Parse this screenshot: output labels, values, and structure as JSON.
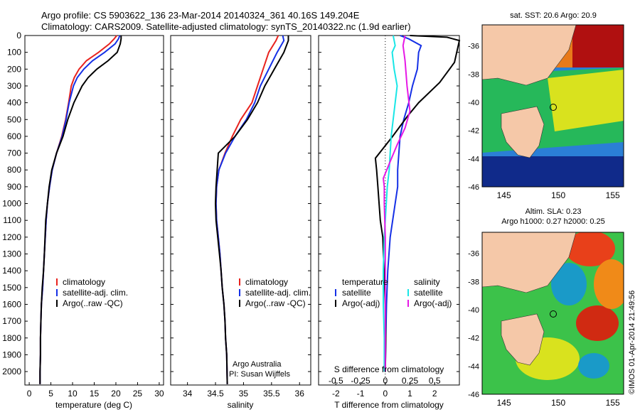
{
  "header": {
    "line1": "Argo profile: CS 5903622_136 23-Mar-2014 20140324_361 40.16S 149.204E",
    "line2": "Climatology: CARS2009. Satellite-adjusted climatology: synTS_20140322.nc (1.9d earlier)"
  },
  "colors": {
    "climatology": "#e8231e",
    "satellite": "#1530e6",
    "argo": "#000000",
    "satellite_s": "#19e6e6",
    "argo_s": "#e619e6"
  },
  "chart_data": [
    {
      "id": "temperature",
      "type": "line",
      "xlabel": "temperature (deg C)",
      "ylabel": "",
      "xlim": [
        -1,
        31
      ],
      "ylim": [
        2080,
        0
      ],
      "xticks": [
        0,
        5,
        10,
        15,
        20,
        25,
        30
      ],
      "yticks": [
        0,
        100,
        200,
        300,
        400,
        500,
        600,
        700,
        800,
        900,
        1000,
        1100,
        1200,
        1300,
        1400,
        1500,
        1600,
        1700,
        1800,
        1900,
        2000
      ],
      "legend": {
        "placement": "lower-middle",
        "entries": [
          "climatology",
          "satellite-adj. clim.",
          "Argo(..raw -QC)"
        ]
      },
      "series": [
        {
          "name": "climatology",
          "color": "#e8231e",
          "x": [
            20.2,
            19.6,
            18.5,
            16.0,
            13.2,
            11.5,
            10.4,
            9.7,
            9.1,
            8.4,
            7.5,
            6.3,
            5.3,
            4.7,
            4.2,
            3.9,
            3.5,
            3.3,
            3.1,
            2.8,
            2.7,
            2.6,
            2.6,
            2.5,
            2.5,
            2.5
          ],
          "y": [
            0,
            20,
            50,
            100,
            150,
            200,
            250,
            300,
            400,
            500,
            600,
            700,
            800,
            900,
            1000,
            1100,
            1300,
            1400,
            1500,
            1600,
            1700,
            1800,
            1900,
            2000,
            2050,
            2075
          ]
        },
        {
          "name": "satellite-adj. clim.",
          "color": "#1530e6",
          "x": [
            20.9,
            20.6,
            19.8,
            17.4,
            14.6,
            12.6,
            11.1,
            10.2,
            9.2,
            8.5,
            7.6,
            6.3,
            5.3,
            4.7,
            4.2,
            3.9,
            3.5,
            3.3,
            3.1,
            2.8,
            2.7,
            2.6,
            2.6,
            2.5,
            2.5,
            2.5
          ],
          "y": [
            0,
            20,
            50,
            100,
            150,
            200,
            250,
            300,
            400,
            500,
            600,
            700,
            800,
            900,
            1000,
            1100,
            1300,
            1400,
            1500,
            1600,
            1700,
            1800,
            1900,
            2000,
            2050,
            2075
          ]
        },
        {
          "name": "Argo(..raw -QC)",
          "color": "#000000",
          "x": [
            21.2,
            21.2,
            21.0,
            20.3,
            18.2,
            15.6,
            13.6,
            12.2,
            10.3,
            8.9,
            7.8,
            6.3,
            5.2,
            4.6,
            4.2,
            3.8,
            3.5,
            3.3,
            3.0,
            2.8,
            2.7,
            2.6,
            2.6,
            2.5,
            2.5,
            2.5
          ],
          "y": [
            0,
            20,
            50,
            100,
            150,
            200,
            250,
            300,
            400,
            500,
            600,
            700,
            800,
            900,
            1000,
            1100,
            1300,
            1400,
            1500,
            1600,
            1700,
            1800,
            1900,
            2000,
            2050,
            2075
          ]
        }
      ]
    },
    {
      "id": "salinity",
      "type": "line",
      "xlabel": "salinity",
      "ylabel": "",
      "xlim": [
        33.7,
        36.2
      ],
      "ylim": [
        2080,
        0
      ],
      "xticks": [
        34,
        34.5,
        35,
        35.5,
        36
      ],
      "legend": {
        "placement": "lower-right",
        "entries": [
          "climatology",
          "satellite-adj. clim.",
          "Argo(..raw -QC)"
        ]
      },
      "annotation": [
        "Argo Australia",
        "PI: Susan Wijffels"
      ],
      "series": [
        {
          "name": "climatology",
          "color": "#e8231e",
          "x": [
            35.62,
            35.58,
            35.45,
            35.35,
            35.25,
            35.15,
            34.95,
            34.8,
            34.67,
            34.56,
            34.52,
            34.51,
            34.52,
            34.55,
            34.58,
            34.6,
            34.62,
            34.65,
            34.67,
            34.68,
            34.7,
            34.71
          ],
          "y": [
            0,
            30,
            100,
            200,
            300,
            400,
            500,
            600,
            700,
            800,
            900,
            1000,
            1100,
            1200,
            1300,
            1400,
            1500,
            1600,
            1700,
            1800,
            1900,
            2075
          ]
        },
        {
          "name": "satellite-adj. clim.",
          "color": "#1530e6",
          "x": [
            35.7,
            35.72,
            35.6,
            35.45,
            35.3,
            35.2,
            35.05,
            34.85,
            34.68,
            34.56,
            34.52,
            34.51,
            34.52,
            34.55,
            34.58,
            34.6,
            34.62,
            34.65,
            34.67,
            34.68,
            34.7,
            34.71
          ],
          "y": [
            0,
            30,
            100,
            200,
            300,
            400,
            500,
            600,
            700,
            800,
            900,
            1000,
            1100,
            1200,
            1300,
            1400,
            1500,
            1600,
            1700,
            1800,
            1900,
            2075
          ]
        },
        {
          "name": "Argo(..raw -QC)",
          "color": "#000000",
          "x": [
            35.8,
            35.8,
            35.72,
            35.55,
            35.38,
            35.25,
            35.07,
            34.85,
            34.55,
            34.53,
            34.51,
            34.5,
            34.51,
            34.54,
            34.57,
            34.6,
            34.62,
            34.65,
            34.67,
            34.68,
            34.7,
            34.71
          ],
          "y": [
            0,
            30,
            100,
            200,
            300,
            400,
            500,
            600,
            700,
            800,
            900,
            1000,
            1100,
            1200,
            1300,
            1400,
            1500,
            1600,
            1700,
            1800,
            1900,
            2075
          ]
        }
      ]
    },
    {
      "id": "difference",
      "type": "line",
      "xlabel": "T difference from climatology",
      "xlabel_top": "S difference from climatology",
      "xlim": [
        -2.7,
        3.0
      ],
      "ylim": [
        2080,
        0
      ],
      "xticks": [
        -2,
        -1,
        0,
        1,
        2
      ],
      "s_ticks": [
        -0.5,
        -0.25,
        0,
        0.25,
        0.5
      ],
      "s_tick_labels": [
        "-0.5",
        "-0.25",
        "0",
        "0.25",
        "0.5"
      ],
      "legend_t": {
        "title": "temperature",
        "entries": [
          "satellite",
          "Argo(-adj)"
        ]
      },
      "legend_s": {
        "title": "salinity",
        "entries": [
          "satellite",
          "Argo(-adj)"
        ]
      },
      "series": [
        {
          "name": "satellite",
          "quantity": "T",
          "color": "#1530e6",
          "x": [
            0.6,
            0.95,
            1.45,
            1.35,
            1.3,
            1.1,
            0.95,
            0.75,
            0.6,
            0.55,
            0.5,
            0.5,
            0.4,
            0.3,
            0.2,
            0.15,
            0.1,
            0.05,
            0.02,
            0.0
          ],
          "y": [
            0,
            20,
            60,
            100,
            200,
            300,
            400,
            500,
            600,
            700,
            800,
            900,
            1000,
            1100,
            1200,
            1300,
            1400,
            1600,
            1800,
            2000
          ]
        },
        {
          "name": "Argo(-adj)",
          "quantity": "T",
          "color": "#000000",
          "x": [
            1.0,
            2.5,
            3.0,
            2.8,
            2.2,
            1.35,
            0.9,
            0.3,
            -0.4,
            -0.35,
            -0.3,
            -0.25,
            -0.2,
            -0.1,
            -0.05,
            0.0,
            0.02,
            0.0
          ],
          "y": [
            0,
            10,
            30,
            160,
            280,
            400,
            480,
            600,
            730,
            800,
            900,
            1000,
            1100,
            1200,
            1400,
            1600,
            1800,
            2000
          ]
        },
        {
          "name": "satellite",
          "quantity": "S",
          "color": "#19e6e6",
          "x": [
            0.08,
            0.1,
            0.07,
            0.09,
            0.12,
            0.1,
            0.08,
            0.06,
            0.05,
            0.04,
            0.02,
            0.01,
            0.0,
            -0.01,
            -0.02,
            -0.02,
            -0.01,
            -0.01
          ],
          "y": [
            0,
            60,
            100,
            200,
            300,
            400,
            500,
            600,
            700,
            800,
            900,
            1000,
            1100,
            1200,
            1400,
            1600,
            1800,
            2000
          ]
        },
        {
          "name": "Argo(-adj)",
          "quantity": "S",
          "color": "#e619e6",
          "x": [
            0.2,
            0.18,
            0.2,
            0.22,
            0.25,
            0.2,
            0.12,
            0.05,
            -0.02,
            -0.01,
            -0.01,
            0.0,
            0.0,
            0.0
          ],
          "y": [
            0,
            60,
            150,
            300,
            450,
            550,
            650,
            750,
            850,
            900,
            1000,
            1200,
            1500,
            2000
          ]
        }
      ]
    },
    {
      "id": "sst-map",
      "type": "heatmap",
      "title": "sat. SST: 20.6 Argo: 20.9",
      "xlim": [
        143,
        156
      ],
      "ylim": [
        -46,
        -34.5
      ],
      "xticks": [
        145,
        150,
        155
      ],
      "yticks": [
        -36,
        -38,
        -40,
        -42,
        -44,
        -46
      ],
      "argo_position": {
        "lon": 149.204,
        "lat": -40.16
      }
    },
    {
      "id": "sla-map",
      "type": "heatmap",
      "title": "Altim. SLA: 0.23",
      "subtitle": "Argo h1000: 0.27 h2000: 0.25",
      "xlim": [
        143,
        156
      ],
      "ylim": [
        -46,
        -34.5
      ],
      "xticks": [
        145,
        150,
        155
      ],
      "yticks": [
        -36,
        -38,
        -40,
        -42,
        -44,
        -46
      ],
      "argo_position": {
        "lon": 149.204,
        "lat": -40.16
      }
    }
  ],
  "footer": {
    "credit": "©IMOS 01-Apr-2014 21:49:56"
  }
}
